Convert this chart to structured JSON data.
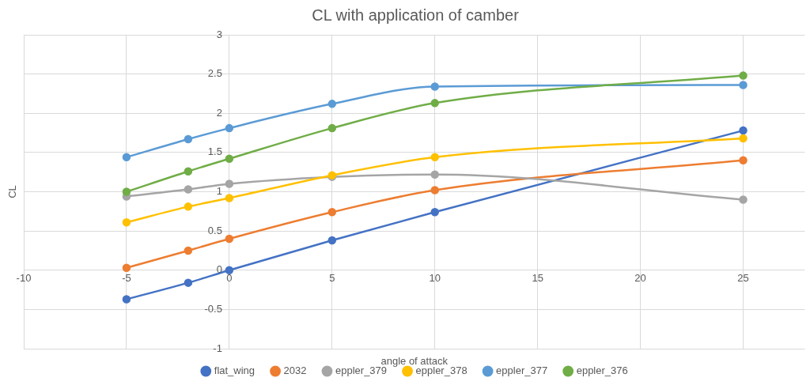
{
  "chart_data": {
    "type": "line",
    "title": "CL with application of camber",
    "xlabel": "angle of attack",
    "ylabel": "CL",
    "x": [
      -5,
      -2,
      0,
      5,
      10,
      25
    ],
    "xlim": [
      -10,
      28
    ],
    "xticks": [
      -10,
      -5,
      0,
      5,
      10,
      15,
      20,
      25
    ],
    "ylim": [
      -1,
      3
    ],
    "yticks": [
      -1,
      -0.5,
      0,
      0.5,
      1,
      1.5,
      2,
      2.5,
      3
    ],
    "grid": true,
    "legend": "bottom",
    "marker": "circle",
    "line_style": "solid",
    "series": [
      {
        "name": "flat_wing",
        "color": "#4472c4",
        "values": [
          -0.37,
          -0.16,
          0,
          0.38,
          0.74,
          1.78
        ]
      },
      {
        "name": "2032",
        "color": "#ed7d31",
        "values": [
          0.03,
          0.25,
          0.4,
          0.74,
          1.02,
          1.4
        ]
      },
      {
        "name": "eppler_379",
        "color": "#a5a5a5",
        "values": [
          0.94,
          1.03,
          1.1,
          1.19,
          1.22,
          0.9
        ]
      },
      {
        "name": "eppler_378",
        "color": "#ffc000",
        "values": [
          0.61,
          0.81,
          0.92,
          1.21,
          1.44,
          1.68
        ]
      },
      {
        "name": "eppler_377",
        "color": "#5b9bd5",
        "values": [
          1.44,
          1.67,
          1.81,
          2.12,
          2.34,
          2.36
        ]
      },
      {
        "name": "eppler_376",
        "color": "#70ad47",
        "values": [
          1.0,
          1.26,
          1.42,
          1.81,
          2.13,
          2.48
        ]
      }
    ]
  }
}
